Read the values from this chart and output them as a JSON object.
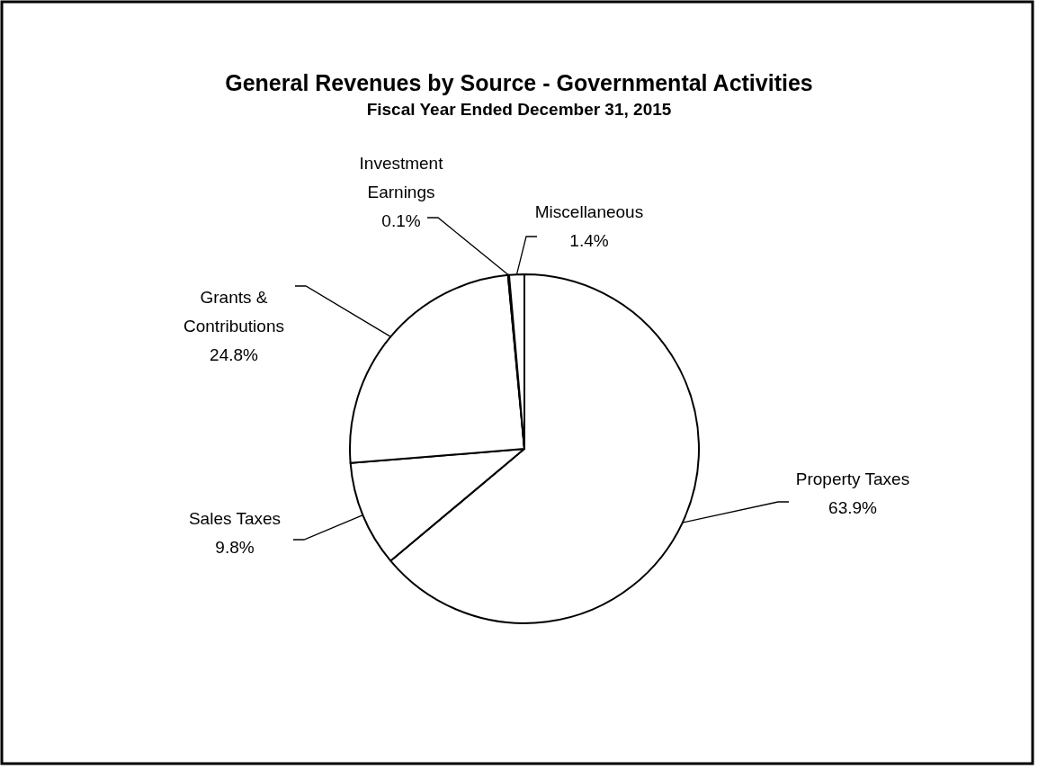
{
  "chart_data": {
    "type": "pie",
    "title": "General Revenues by Source - Governmental Activities",
    "subtitle": "Fiscal Year Ended December 31, 2015",
    "categories": [
      "Property Taxes",
      "Sales Taxes",
      "Grants & Contributions",
      "Investment Earnings",
      "Miscellaneous"
    ],
    "values": [
      63.9,
      9.8,
      24.8,
      0.1,
      1.4
    ],
    "value_labels": [
      "63.9%",
      "9.8%",
      "24.8%",
      "0.1%",
      "1.4%"
    ],
    "colors": [
      "#ffffff",
      "#ffffff",
      "#ffffff",
      "#ffffff",
      "#ffffff"
    ]
  }
}
